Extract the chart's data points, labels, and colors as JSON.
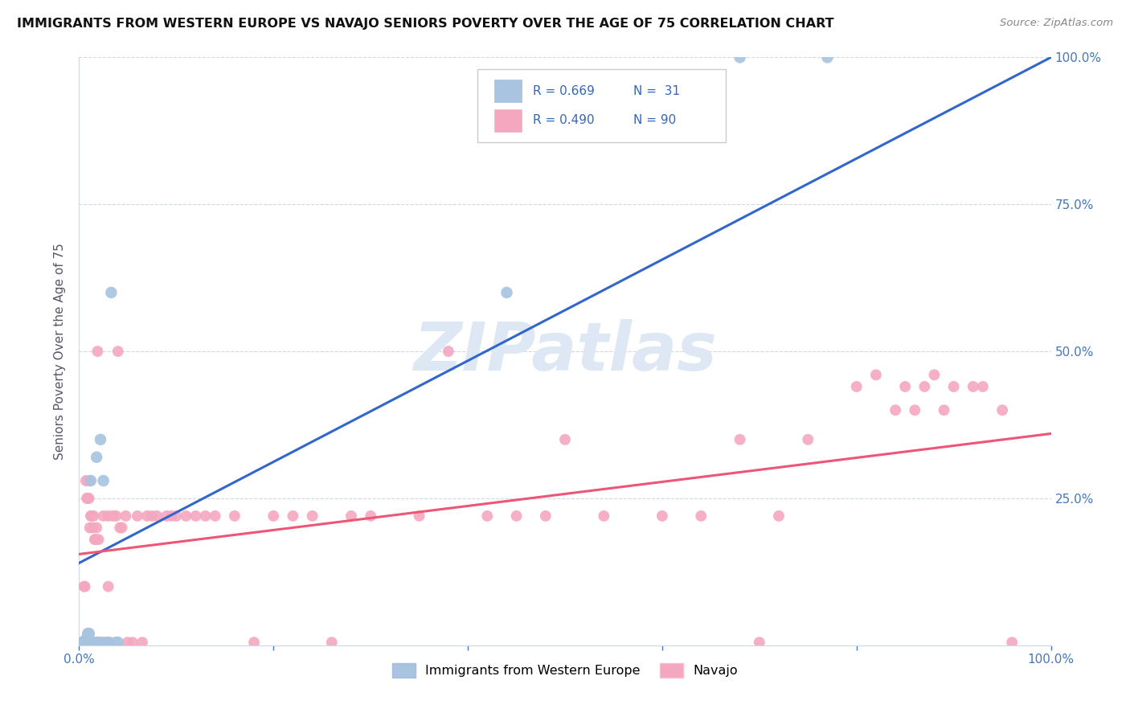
{
  "title": "IMMIGRANTS FROM WESTERN EUROPE VS NAVAJO SENIORS POVERTY OVER THE AGE OF 75 CORRELATION CHART",
  "source": "Source: ZipAtlas.com",
  "ylabel": "Seniors Poverty Over the Age of 75",
  "xlim": [
    0,
    1.0
  ],
  "ylim": [
    0,
    1.0
  ],
  "blue_color": "#a8c4e0",
  "pink_color": "#f4a8c0",
  "blue_line_color": "#3366cc",
  "pink_line_color": "#ee5577",
  "watermark_text": "ZIPatlas",
  "watermark_color": "#dde8f4",
  "blue_line_x": [
    0.0,
    1.0
  ],
  "blue_line_y": [
    0.14,
    1.0
  ],
  "pink_line_x": [
    0.0,
    1.0
  ],
  "pink_line_y": [
    0.155,
    0.36
  ],
  "blue_scatter": [
    [
      0.003,
      0.005
    ],
    [
      0.004,
      0.005
    ],
    [
      0.005,
      0.005
    ],
    [
      0.006,
      0.005
    ],
    [
      0.006,
      0.005
    ],
    [
      0.007,
      0.005
    ],
    [
      0.007,
      0.01
    ],
    [
      0.008,
      0.01
    ],
    [
      0.008,
      0.005
    ],
    [
      0.009,
      0.005
    ],
    [
      0.009,
      0.02
    ],
    [
      0.01,
      0.02
    ],
    [
      0.01,
      0.02
    ],
    [
      0.011,
      0.005
    ],
    [
      0.012,
      0.28
    ],
    [
      0.013,
      0.005
    ],
    [
      0.014,
      0.005
    ],
    [
      0.015,
      0.005
    ],
    [
      0.018,
      0.32
    ],
    [
      0.02,
      0.005
    ],
    [
      0.021,
      0.005
    ],
    [
      0.022,
      0.35
    ],
    [
      0.025,
      0.28
    ],
    [
      0.028,
      0.005
    ],
    [
      0.03,
      0.005
    ],
    [
      0.033,
      0.6
    ],
    [
      0.038,
      0.005
    ],
    [
      0.04,
      0.005
    ],
    [
      0.44,
      0.6
    ],
    [
      0.68,
      1.0
    ],
    [
      0.77,
      1.0
    ]
  ],
  "pink_scatter": [
    [
      0.003,
      0.005
    ],
    [
      0.004,
      0.005
    ],
    [
      0.005,
      0.005
    ],
    [
      0.005,
      0.1
    ],
    [
      0.006,
      0.005
    ],
    [
      0.006,
      0.1
    ],
    [
      0.007,
      0.005
    ],
    [
      0.007,
      0.28
    ],
    [
      0.008,
      0.005
    ],
    [
      0.008,
      0.25
    ],
    [
      0.009,
      0.005
    ],
    [
      0.009,
      0.25
    ],
    [
      0.01,
      0.005
    ],
    [
      0.01,
      0.25
    ],
    [
      0.01,
      0.28
    ],
    [
      0.011,
      0.005
    ],
    [
      0.011,
      0.2
    ],
    [
      0.012,
      0.005
    ],
    [
      0.012,
      0.22
    ],
    [
      0.013,
      0.005
    ],
    [
      0.013,
      0.22
    ],
    [
      0.014,
      0.005
    ],
    [
      0.014,
      0.2
    ],
    [
      0.015,
      0.005
    ],
    [
      0.015,
      0.22
    ],
    [
      0.016,
      0.005
    ],
    [
      0.016,
      0.18
    ],
    [
      0.017,
      0.005
    ],
    [
      0.017,
      0.18
    ],
    [
      0.018,
      0.005
    ],
    [
      0.018,
      0.2
    ],
    [
      0.019,
      0.005
    ],
    [
      0.019,
      0.5
    ],
    [
      0.02,
      0.005
    ],
    [
      0.02,
      0.18
    ],
    [
      0.022,
      0.005
    ],
    [
      0.024,
      0.005
    ],
    [
      0.025,
      0.22
    ],
    [
      0.026,
      0.005
    ],
    [
      0.028,
      0.005
    ],
    [
      0.03,
      0.1
    ],
    [
      0.03,
      0.22
    ],
    [
      0.032,
      0.005
    ],
    [
      0.035,
      0.22
    ],
    [
      0.038,
      0.22
    ],
    [
      0.04,
      0.5
    ],
    [
      0.042,
      0.2
    ],
    [
      0.044,
      0.2
    ],
    [
      0.048,
      0.22
    ],
    [
      0.05,
      0.005
    ],
    [
      0.055,
      0.005
    ],
    [
      0.06,
      0.22
    ],
    [
      0.065,
      0.005
    ],
    [
      0.07,
      0.22
    ],
    [
      0.075,
      0.22
    ],
    [
      0.08,
      0.22
    ],
    [
      0.09,
      0.22
    ],
    [
      0.095,
      0.22
    ],
    [
      0.1,
      0.22
    ],
    [
      0.11,
      0.22
    ],
    [
      0.12,
      0.22
    ],
    [
      0.13,
      0.22
    ],
    [
      0.14,
      0.22
    ],
    [
      0.16,
      0.22
    ],
    [
      0.18,
      0.005
    ],
    [
      0.2,
      0.22
    ],
    [
      0.22,
      0.22
    ],
    [
      0.24,
      0.22
    ],
    [
      0.26,
      0.005
    ],
    [
      0.28,
      0.22
    ],
    [
      0.3,
      0.22
    ],
    [
      0.35,
      0.22
    ],
    [
      0.38,
      0.5
    ],
    [
      0.42,
      0.22
    ],
    [
      0.45,
      0.22
    ],
    [
      0.48,
      0.22
    ],
    [
      0.5,
      0.35
    ],
    [
      0.54,
      0.22
    ],
    [
      0.6,
      0.22
    ],
    [
      0.64,
      0.22
    ],
    [
      0.68,
      0.35
    ],
    [
      0.7,
      0.005
    ],
    [
      0.72,
      0.22
    ],
    [
      0.75,
      0.35
    ],
    [
      0.8,
      0.44
    ],
    [
      0.82,
      0.46
    ],
    [
      0.84,
      0.4
    ],
    [
      0.85,
      0.44
    ],
    [
      0.86,
      0.4
    ],
    [
      0.87,
      0.44
    ],
    [
      0.88,
      0.46
    ],
    [
      0.89,
      0.4
    ],
    [
      0.9,
      0.44
    ],
    [
      0.92,
      0.44
    ],
    [
      0.93,
      0.44
    ],
    [
      0.95,
      0.4
    ],
    [
      0.96,
      0.005
    ]
  ]
}
